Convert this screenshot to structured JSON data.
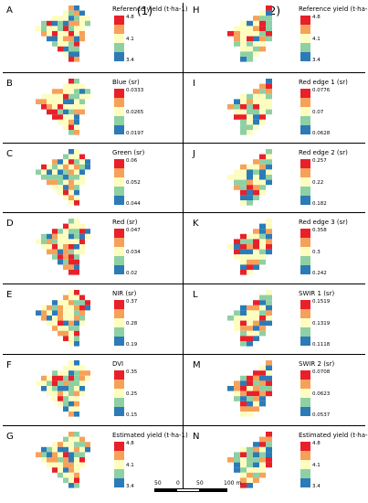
{
  "groups": {
    "left_label": "(1)",
    "right_label": "(2)"
  },
  "legend_colors": [
    "#e8202a",
    "#f6a15a",
    "#fefdc0",
    "#8ed0a4",
    "#2c7bb6"
  ],
  "panels": [
    {
      "letter": "A",
      "title": "Reference yield (t·ha-1)",
      "ticks": [
        "4.8",
        "4.1",
        "3.4"
      ]
    },
    {
      "letter": "B",
      "title": "Blue (sr)",
      "ticks": [
        "0.0333",
        "0.0265",
        "0.0197"
      ]
    },
    {
      "letter": "C",
      "title": "Green (sr)",
      "ticks": [
        "0.06",
        "0.052",
        "0.044"
      ]
    },
    {
      "letter": "D",
      "title": "Red (sr)",
      "ticks": [
        "0.047",
        "0.034",
        "0.02"
      ]
    },
    {
      "letter": "E",
      "title": "NIR (sr)",
      "ticks": [
        "0.37",
        "0.28",
        "0.19"
      ]
    },
    {
      "letter": "F",
      "title": "DVI",
      "ticks": [
        "0.35",
        "0.25",
        "0.15"
      ]
    },
    {
      "letter": "G",
      "title": "Estimated yield (t·ha-1)",
      "ticks": [
        "4.8",
        "4.1",
        "3.4"
      ]
    },
    {
      "letter": "H",
      "title": "Reference yield (t·ha-1)",
      "ticks": [
        "4.8",
        "4.1",
        "3.4"
      ]
    },
    {
      "letter": "I",
      "title": "Red edge 1 (sr)",
      "ticks": [
        "0.0776",
        "0.07",
        "0.0628"
      ]
    },
    {
      "letter": "J",
      "title": "Red edge 2 (sr)",
      "ticks": [
        "0.257",
        "0.22",
        "0.182"
      ]
    },
    {
      "letter": "K",
      "title": "Red edge 3 (sr)",
      "ticks": [
        "0.358",
        "0.3",
        "0.242"
      ]
    },
    {
      "letter": "L",
      "title": "SWIR 1 (sr)",
      "ticks": [
        "0.1519",
        "0.1319",
        "0.1118"
      ]
    },
    {
      "letter": "M",
      "title": "SWIR 2 (sr)",
      "ticks": [
        "0.0708",
        "0.0623",
        "0.0537"
      ]
    },
    {
      "letter": "N",
      "title": "Estimated yield (t·ha-1)",
      "ticks": [
        "4.8",
        "4.1",
        "3.4"
      ]
    }
  ],
  "scalebar": {
    "labels": [
      "50",
      "0",
      "50",
      "100 m"
    ]
  }
}
